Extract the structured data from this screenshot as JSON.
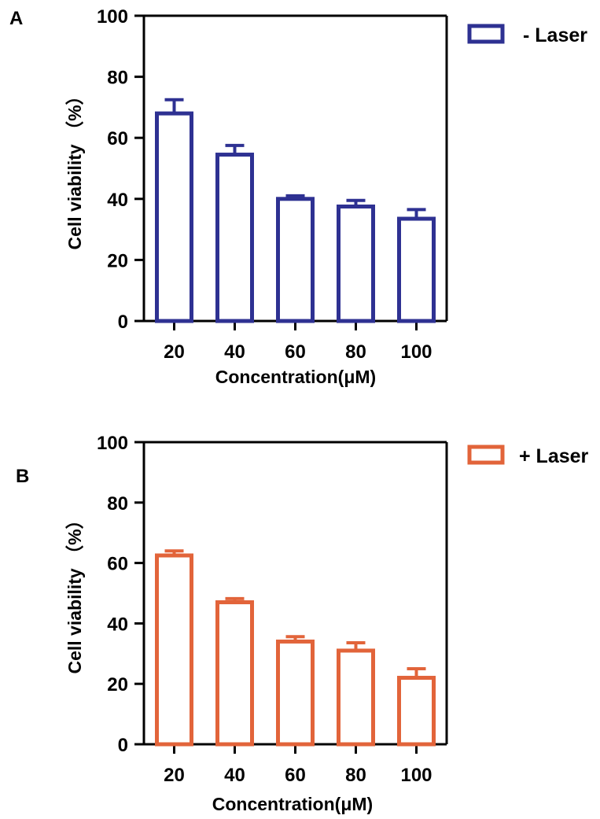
{
  "chart_data": [
    {
      "type": "bar",
      "panel_label": "A",
      "categories": [
        "20",
        "40",
        "60",
        "80",
        "100"
      ],
      "series": [
        {
          "name": "- Laser",
          "values": [
            68,
            54.5,
            40,
            37.5,
            33.5
          ],
          "errors": [
            4.5,
            3,
            1,
            2,
            3
          ]
        }
      ],
      "xlabel": "Concentration(μM)",
      "ylabel": "Cell viability （%）",
      "ylim": [
        0,
        100
      ],
      "yticks": [
        "0",
        "20",
        "40",
        "60",
        "80",
        "100"
      ],
      "color": "#2e3192",
      "grid": false,
      "legend_position": "top-right",
      "bar_fill": "#ffffff"
    },
    {
      "type": "bar",
      "panel_label": "B",
      "categories": [
        "20",
        "40",
        "60",
        "80",
        "100"
      ],
      "series": [
        {
          "name": "+ Laser",
          "values": [
            62.5,
            47,
            34,
            31,
            22
          ],
          "errors": [
            1.5,
            1.2,
            1.6,
            2.6,
            3
          ]
        }
      ],
      "xlabel": "Concentration(μM)",
      "ylabel": "Cell viability （%）",
      "ylim": [
        0,
        100
      ],
      "yticks": [
        "0",
        "20",
        "40",
        "60",
        "80",
        "100"
      ],
      "color": "#e2643a",
      "grid": false,
      "legend_position": "top-right",
      "bar_fill": "#ffffff"
    }
  ]
}
